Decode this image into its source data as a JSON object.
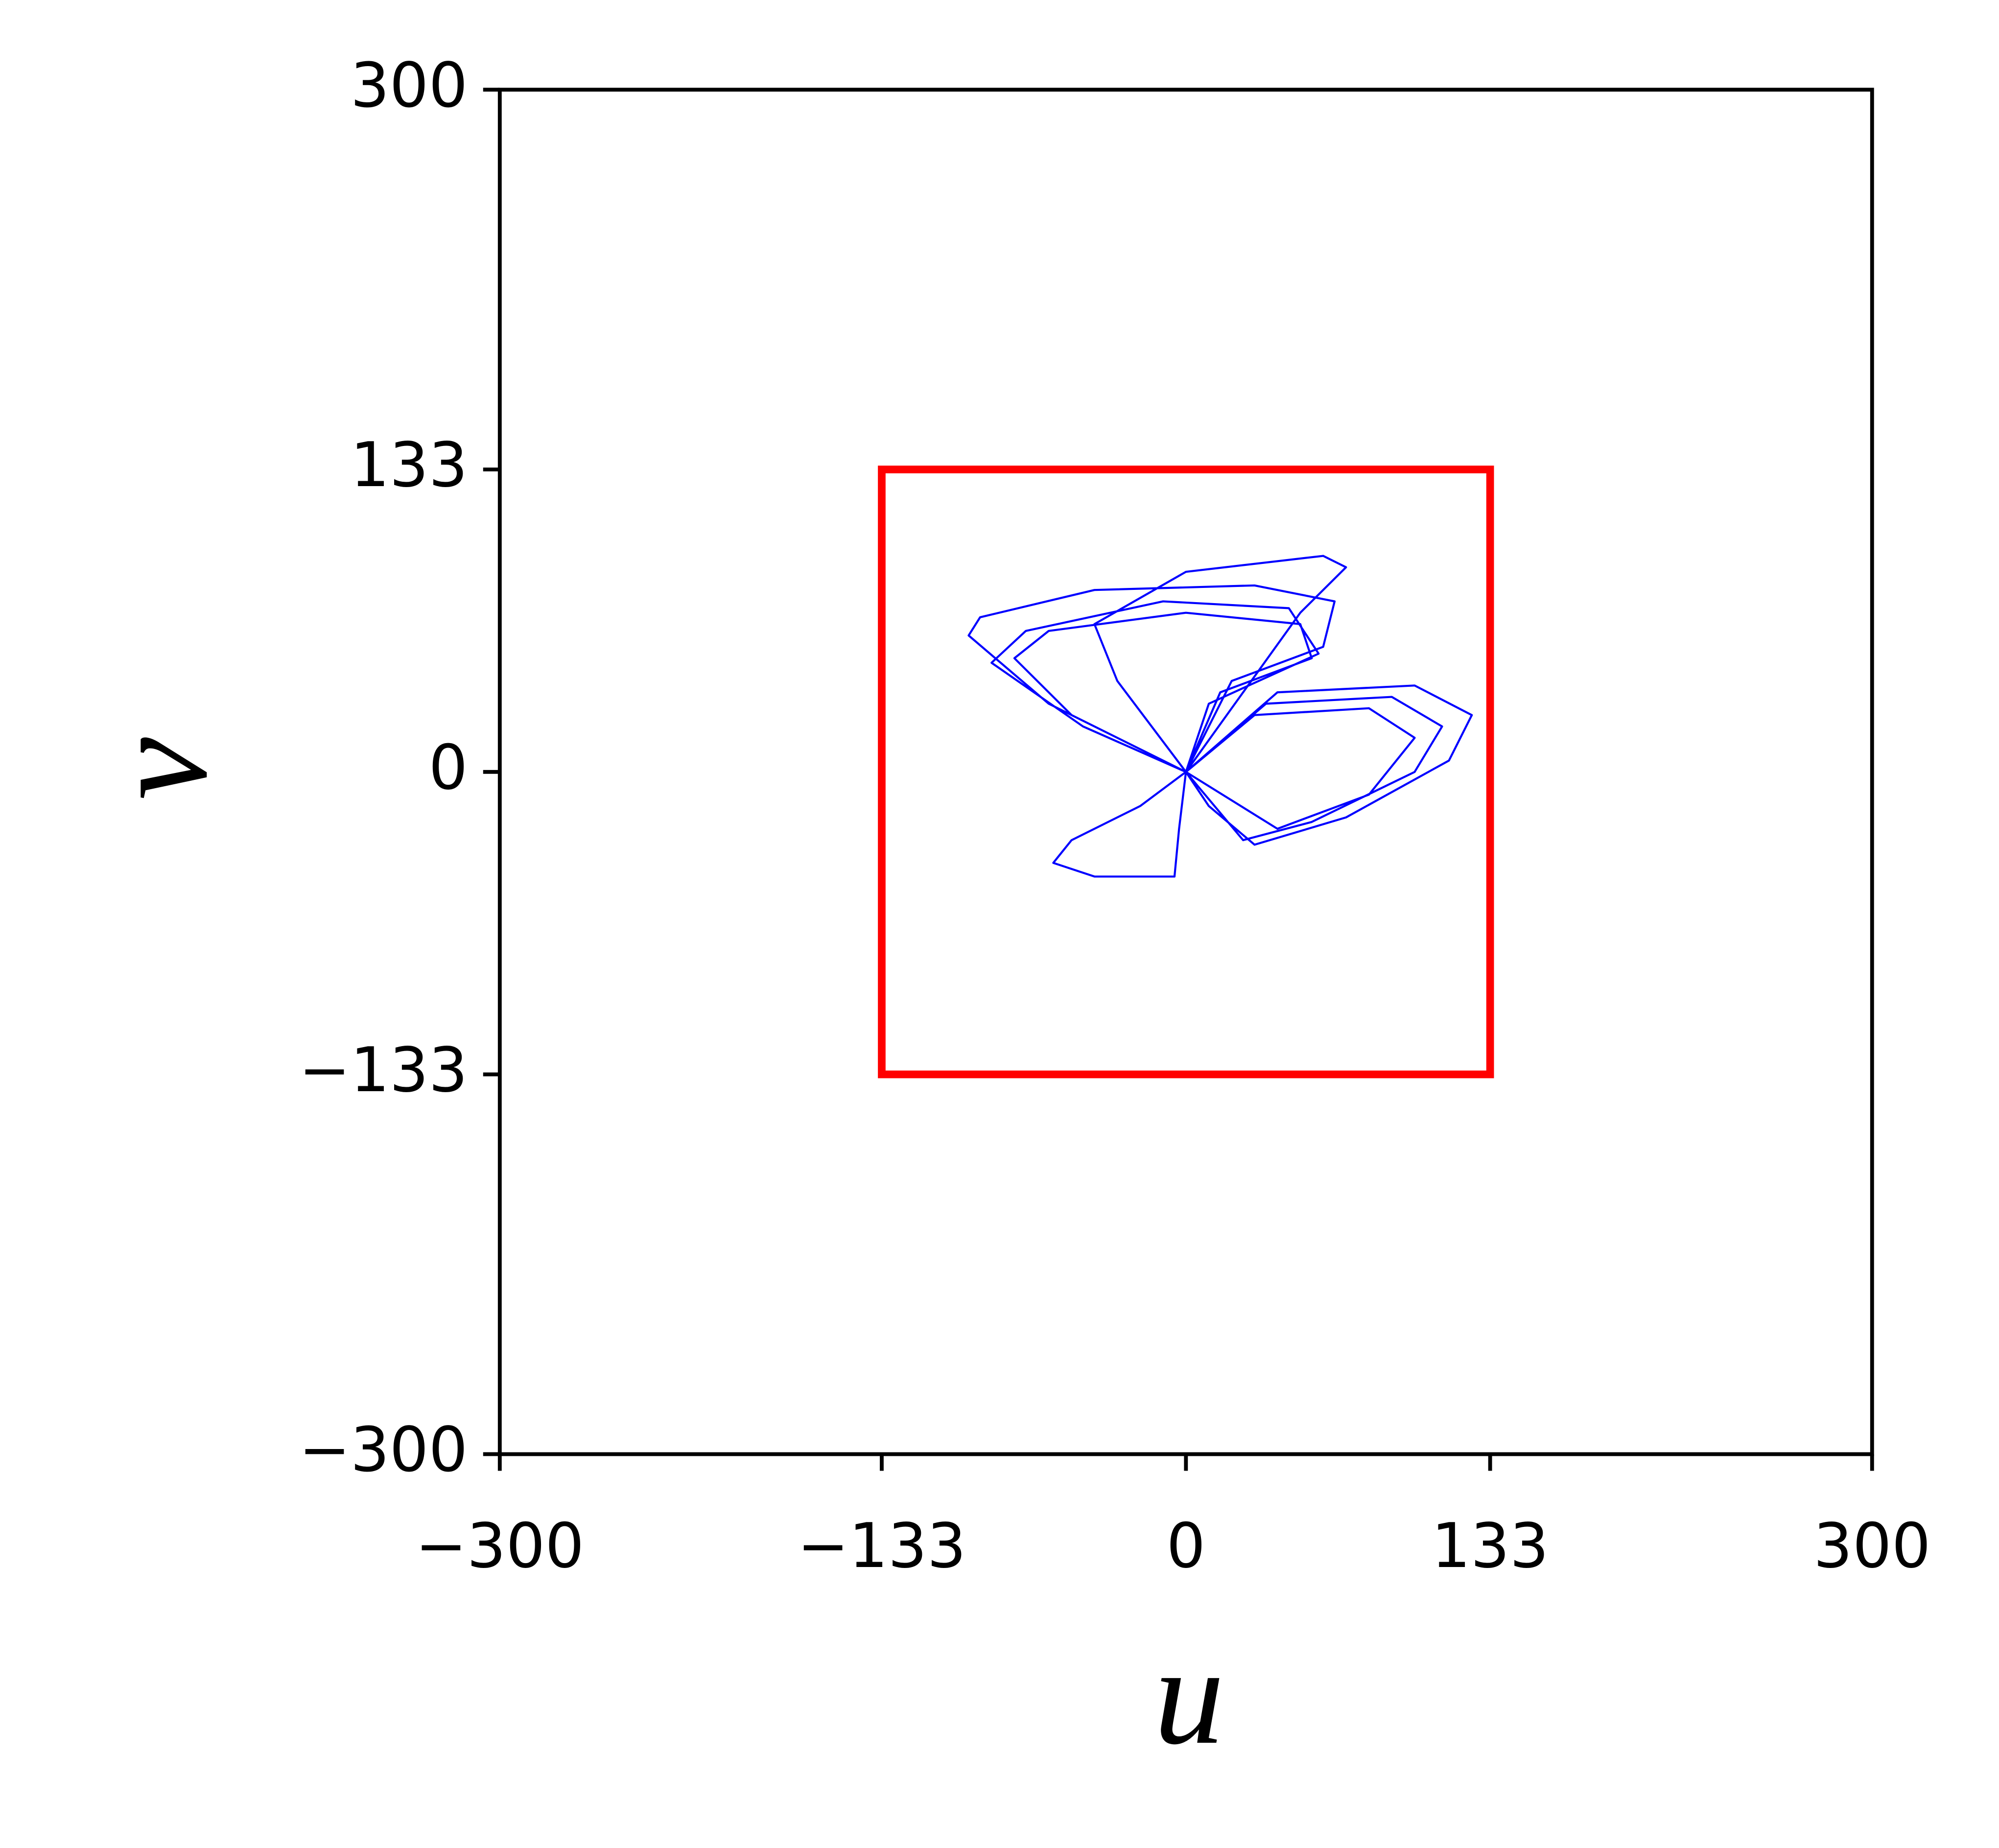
{
  "chart_data": {
    "type": "line",
    "xlabel": "u",
    "ylabel": "v",
    "xlim": [
      -300,
      300
    ],
    "ylim": [
      -300,
      300
    ],
    "xticks": [
      {
        "value": -300,
        "label": "−300"
      },
      {
        "value": -133,
        "label": "−133"
      },
      0,
      133,
      300
    ],
    "yticks": [
      {
        "value": -300,
        "label": "−300"
      },
      {
        "value": -133,
        "label": "−133"
      },
      0,
      133,
      300
    ],
    "grid": false,
    "box": {
      "x": [
        -133,
        133
      ],
      "y": [
        -133,
        133
      ],
      "color": "#ff0000"
    },
    "series": [
      {
        "color": "#0000ff",
        "x": [
          0,
          -60,
          -95,
          -90,
          -40,
          30,
          65,
          60,
          20,
          0,
          -50,
          -75,
          -60,
          0,
          50,
          55,
          15,
          0,
          40,
          100,
          125,
          115,
          70,
          30,
          10,
          0,
          -20,
          -50,
          -58,
          -40,
          -5,
          -3,
          0,
          -30,
          -40,
          0,
          60,
          70,
          50,
          0,
          30,
          80,
          100,
          80,
          40,
          0,
          -45,
          -85,
          -70,
          -10,
          45,
          58,
          10,
          0,
          35,
          90,
          112,
          100,
          55,
          25,
          0
        ],
        "values": [
          0,
          30,
          60,
          68,
          80,
          82,
          75,
          55,
          40,
          0,
          25,
          50,
          62,
          70,
          65,
          50,
          35,
          0,
          35,
          38,
          25,
          5,
          -20,
          -32,
          -15,
          0,
          -15,
          -30,
          -40,
          -46,
          -46,
          -25,
          0,
          40,
          65,
          88,
          95,
          90,
          70,
          0,
          25,
          28,
          15,
          -10,
          -25,
          0,
          20,
          48,
          62,
          75,
          72,
          52,
          30,
          0,
          30,
          33,
          20,
          0,
          -22,
          -30,
          0
        ]
      }
    ]
  }
}
